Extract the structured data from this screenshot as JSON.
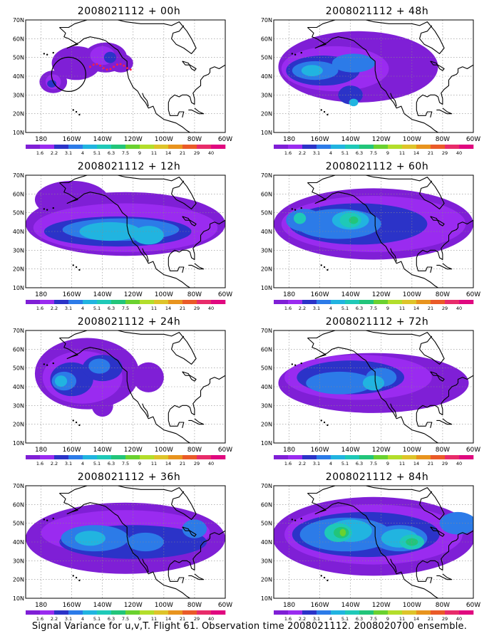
{
  "figure": {
    "caption": "Signal Variance for u,v,T. Flight 61. Observation time 2008021112. 2008020700 ensemble."
  },
  "colorbar": {
    "labels": [
      "1.6",
      "2.2",
      "3.1",
      "4",
      "5.1",
      "6.3",
      "7.5",
      "9",
      "11",
      "14",
      "21",
      "29",
      "40"
    ],
    "colors": [
      "#7f1fd6",
      "#9a2bf0",
      "#2b33c8",
      "#2c7be8",
      "#21b4e0",
      "#1fc9b8",
      "#22c57a",
      "#6ad12f",
      "#b3de2b",
      "#dec42a",
      "#e8941e",
      "#ea5a28",
      "#e82c6a",
      "#e0087f"
    ]
  },
  "axes": {
    "y_ticks": [
      "70N",
      "60N",
      "50N",
      "40N",
      "30N",
      "20N",
      "10N"
    ],
    "x_ticks": [
      "180",
      "160W",
      "140W",
      "120W",
      "100W",
      "80W",
      "60W"
    ]
  },
  "panels": [
    {
      "title": "2008021112 + 00h",
      "level": 0
    },
    {
      "title": "2008021112 + 48h",
      "level": 4
    },
    {
      "title": "2008021112 + 12h",
      "level": 1
    },
    {
      "title": "2008021112 + 60h",
      "level": 5
    },
    {
      "title": "2008021112 + 24h",
      "level": 2
    },
    {
      "title": "2008021112 + 72h",
      "level": 6
    },
    {
      "title": "2008021112 + 36h",
      "level": 3
    },
    {
      "title": "2008021112 + 84h",
      "level": 7
    }
  ]
}
